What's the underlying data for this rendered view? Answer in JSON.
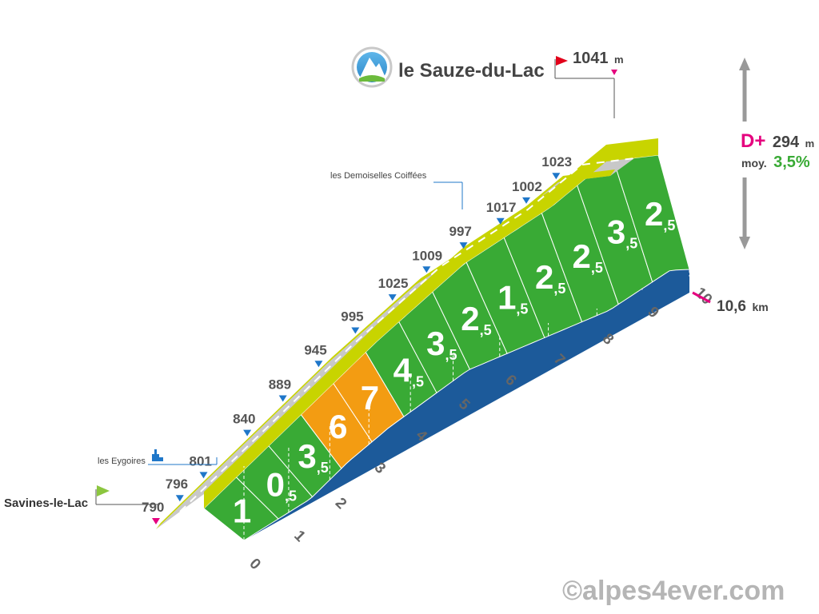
{
  "chart_data": {
    "type": "area",
    "start": {
      "name": "Savines-le-Lac",
      "altitude": "790",
      "flag_color": "#8cc63f"
    },
    "summit": {
      "name": "le Sauze-du-Lac",
      "altitude": "1041",
      "unit": "m",
      "flag_color": "#e2001a"
    },
    "stats": {
      "d_label": "D+",
      "d_value": "294",
      "d_unit": "m",
      "avg_label": "moy.",
      "avg_value": "3,5%"
    },
    "distance": {
      "value": "10,6",
      "unit": "km"
    },
    "km_ticks": [
      "0",
      "1",
      "2",
      "3",
      "4",
      "5",
      "6",
      "7",
      "8",
      "9",
      "10"
    ],
    "segments": [
      {
        "km_start": 0,
        "km_end": 1,
        "grade": 1,
        "label_int": "1",
        "label_dec": "",
        "color": "#39aa35"
      },
      {
        "km_start": 1,
        "km_end": 2,
        "grade": 0.5,
        "label_int": "0",
        "label_dec": ",5",
        "color": "#39aa35"
      },
      {
        "km_start": 2,
        "km_end": 3,
        "grade": 3.5,
        "label_int": "3",
        "label_dec": ",5",
        "color": "#39aa35"
      },
      {
        "km_start": 3,
        "km_end": 4,
        "grade": 6,
        "label_int": "6",
        "label_dec": "",
        "color": "#f39c12"
      },
      {
        "km_start": 4,
        "km_end": 5,
        "grade": 7,
        "label_int": "7",
        "label_dec": "",
        "color": "#f39c12"
      },
      {
        "km_start": 5,
        "km_end": 6,
        "grade": 4.5,
        "label_int": "4",
        "label_dec": ",5",
        "color": "#39aa35"
      },
      {
        "km_start": 6,
        "km_end": 7,
        "grade": 3.5,
        "label_int": "3",
        "label_dec": ",5",
        "color": "#39aa35"
      },
      {
        "km_start": 7,
        "km_end": 8,
        "grade": 2.5,
        "label_int": "2",
        "label_dec": ",5",
        "color": "#39aa35"
      },
      {
        "km_start": 8,
        "km_end": 9,
        "grade": 1.5,
        "label_int": "1",
        "label_dec": ",5",
        "color": "#39aa35"
      },
      {
        "km_start": 9,
        "km_end": 10,
        "grade": 2.5,
        "label_int": "2",
        "label_dec": ",5",
        "color": "#39aa35"
      },
      {
        "km_start": 10,
        "km_end": 11,
        "grade": 2.5,
        "label_int": "2",
        "label_dec": ",5",
        "color": "#39aa35"
      },
      {
        "km_start": 11,
        "km_end": 12,
        "grade": 3.5,
        "label_int": "3",
        "label_dec": ",5",
        "color": "#39aa35"
      },
      {
        "km_start": 12,
        "km_end": 13,
        "grade": 2.5,
        "label_int": "2",
        "label_dec": ",5",
        "color": "#39aa35"
      }
    ],
    "altitude_points": [
      {
        "km": 0.0,
        "alt": "790"
      },
      {
        "km": 0.6,
        "alt": "796"
      },
      {
        "km": 1.2,
        "alt": "801"
      },
      {
        "km": 2.3,
        "alt": "840"
      },
      {
        "km": 3.2,
        "alt": "889"
      },
      {
        "km": 4.1,
        "alt": "945"
      },
      {
        "km": 5.0,
        "alt": "995"
      },
      {
        "km": 5.9,
        "alt": "1025"
      },
      {
        "km": 6.7,
        "alt": "1009"
      },
      {
        "km": 7.5,
        "alt": "997"
      },
      {
        "km": 8.3,
        "alt": "1017"
      },
      {
        "km": 8.9,
        "alt": "1002"
      },
      {
        "km": 9.6,
        "alt": "1023"
      },
      {
        "km": 10.6,
        "alt": "1041"
      }
    ],
    "places": [
      {
        "name": "les Eygoires"
      },
      {
        "name": "les Demoiselles Coiffées"
      }
    ],
    "colors": {
      "road": "#c8c8c8",
      "edge": "#c8d400",
      "side": "#1c5a9a",
      "green": "#39aa35",
      "orange": "#f39c12",
      "marker": "#1f77c9",
      "accent": "#e5007e"
    }
  },
  "watermark": "©alpes4ever.com"
}
